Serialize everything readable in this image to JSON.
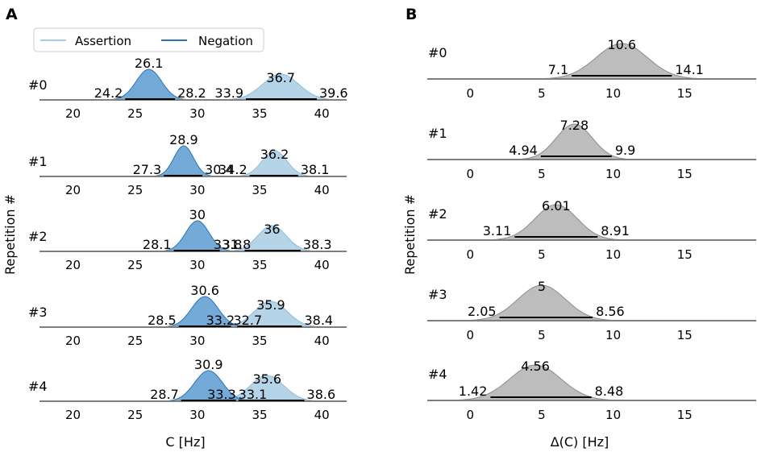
{
  "chart_data": [
    {
      "panel": "A",
      "type": "density-ridge",
      "xlabel": "C [Hz]",
      "ylabel": "Repetition #",
      "xlim": [
        17.5,
        42
      ],
      "xticks": [
        20,
        25,
        30,
        35,
        40
      ],
      "tick_labels": [
        "20",
        "25",
        "30",
        "35",
        "40"
      ],
      "legend": {
        "position": "top-left",
        "entries": [
          "Assertion",
          "Negation"
        ]
      },
      "colors": {
        "assertion": "#a9cce4",
        "assertion_line": "#8fbcdb",
        "negation": "#5b9bd0",
        "negation_line": "#2e72b4",
        "hdi": "#000000",
        "baseline": "#7f7f7f"
      },
      "rows": [
        {
          "label": "#0",
          "negation": {
            "mean": 26.1,
            "hdi_low": 24.2,
            "hdi_high": 28.2,
            "mean_label": "26.1",
            "low_label": "24.2",
            "high_label": "28.2"
          },
          "assertion": {
            "mean": 36.7,
            "hdi_low": 33.9,
            "hdi_high": 39.6,
            "mean_label": "36.7",
            "low_label": "33.9",
            "high_label": "39.6"
          }
        },
        {
          "label": "#1",
          "negation": {
            "mean": 28.9,
            "hdi_low": 27.3,
            "hdi_high": 30.4,
            "mean_label": "28.9",
            "low_label": "27.3",
            "high_label": "30.4"
          },
          "assertion": {
            "mean": 36.2,
            "hdi_low": 34.2,
            "hdi_high": 38.1,
            "mean_label": "36.2",
            "low_label": "34.2",
            "high_label": "38.1"
          }
        },
        {
          "label": "#2",
          "negation": {
            "mean": 30,
            "hdi_low": 28.1,
            "hdi_high": 31.8,
            "mean_label": "30",
            "low_label": "28.1",
            "high_label": "31.8"
          },
          "assertion": {
            "mean": 36,
            "hdi_low": 33.8,
            "hdi_high": 38.3,
            "mean_label": "36",
            "low_label": "33.8",
            "high_label": "38.3"
          }
        },
        {
          "label": "#3",
          "negation": {
            "mean": 30.6,
            "hdi_low": 28.5,
            "hdi_high": 32.7,
            "mean_label": "30.6",
            "low_label": "28.5",
            "high_label": "32.7"
          },
          "assertion": {
            "mean": 35.9,
            "hdi_low": 33.2,
            "hdi_high": 38.4,
            "mean_label": "35.9",
            "low_label": "33.2",
            "high_label": "38.4"
          }
        },
        {
          "label": "#4",
          "negation": {
            "mean": 30.9,
            "hdi_low": 28.7,
            "hdi_high": 33.1,
            "mean_label": "30.9",
            "low_label": "28.7",
            "high_label": "33.1"
          },
          "assertion": {
            "mean": 35.6,
            "hdi_low": 33.3,
            "hdi_high": 38.6,
            "mean_label": "35.6",
            "low_label": "33.3",
            "high_label": "38.6"
          }
        }
      ]
    },
    {
      "panel": "B",
      "type": "density-ridge",
      "xlabel": "Δ(C) [Hz]",
      "ylabel": "Repetition #",
      "xlim": [
        -3,
        20
      ],
      "xticks": [
        0,
        5,
        10,
        15
      ],
      "tick_labels": [
        "0",
        "5",
        "10",
        "15"
      ],
      "colors": {
        "fill": "#bdbdbd",
        "line": "#8c8c8c",
        "hdi": "#000000",
        "baseline": "#7f7f7f"
      },
      "rows": [
        {
          "label": "#0",
          "mean": 10.6,
          "hdi_low": 7.1,
          "hdi_high": 14.1,
          "min": 3.5,
          "max": 17.8,
          "mean_label": "10.6",
          "low_label": "7.1",
          "high_label": "14.1"
        },
        {
          "label": "#1",
          "mean": 7.28,
          "hdi_low": 4.94,
          "hdi_high": 9.9,
          "min": 3.0,
          "max": 12.3,
          "mean_label": "7.28",
          "low_label": "4.94",
          "high_label": "9.9"
        },
        {
          "label": "#2",
          "mean": 6.01,
          "hdi_low": 3.11,
          "hdi_high": 8.91,
          "min": 0.5,
          "max": 12.3,
          "mean_label": "6.01",
          "low_label": "3.11",
          "high_label": "8.91"
        },
        {
          "label": "#3",
          "mean": 5,
          "hdi_low": 2.05,
          "hdi_high": 8.56,
          "min": -0.7,
          "max": 12.0,
          "mean_label": "5",
          "low_label": "2.05",
          "high_label": "8.56"
        },
        {
          "label": "#4",
          "mean": 4.56,
          "hdi_low": 1.42,
          "hdi_high": 8.48,
          "min": -1.5,
          "max": 11.8,
          "mean_label": "4.56",
          "low_label": "1.42",
          "high_label": "8.48"
        }
      ]
    }
  ]
}
